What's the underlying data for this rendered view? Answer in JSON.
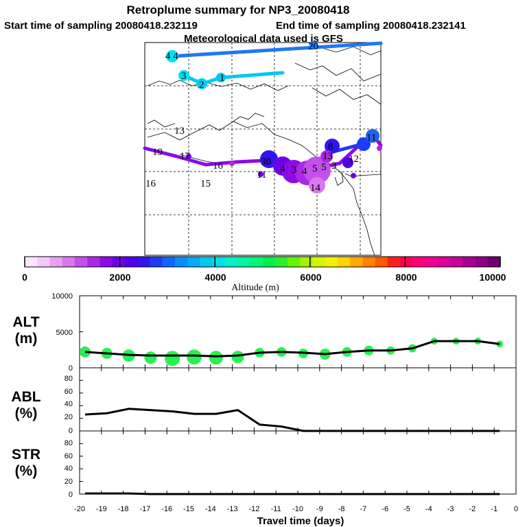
{
  "header": {
    "title": "Retroplume summary for NP3_20080418",
    "start_label": "Start time of sampling 20080418.232119",
    "end_label": "End time of sampling 20080418.232141",
    "met_label": "Meteorological data used is GFS"
  },
  "colorbar": {
    "ticks": [
      "0",
      "2000",
      "4000",
      "6000",
      "8000",
      "10000"
    ],
    "label": "Altitude (m)",
    "range": [
      0,
      10000
    ],
    "colors": [
      "#ffe6ff",
      "#f5c8fa",
      "#e8a0f5",
      "#d878f0",
      "#c450eb",
      "#aa28e6",
      "#8c0ae6",
      "#6e00e6",
      "#5000e6",
      "#3214f0",
      "#1e3cf5",
      "#1464fa",
      "#0a8cfa",
      "#00aaf5",
      "#00c8f0",
      "#00e0e6",
      "#00f0c8",
      "#00f5a0",
      "#00f578",
      "#00f050",
      "#28f028",
      "#64f500",
      "#a0f500",
      "#d2f500",
      "#f5f000",
      "#ffd200",
      "#ffaa00",
      "#ff8200",
      "#ff5a00",
      "#ff1e1e",
      "#ff0050",
      "#ff0078",
      "#f0008c",
      "#dc0096",
      "#c80096",
      "#aa0090",
      "#8c0082",
      "#6e0070"
    ]
  },
  "map": {
    "labels": [
      {
        "text": "4 4",
        "color": "#00e0f0"
      },
      {
        "text": "20",
        "color": "#1e64f0"
      },
      {
        "text": "3",
        "color": "#00e0f0"
      },
      {
        "text": "1",
        "color": "#00e0f0"
      },
      {
        "text": "2",
        "color": "#00e0f0"
      },
      {
        "text": "13",
        "color": "#000000"
      },
      {
        "text": "19",
        "color": "#a000e6"
      },
      {
        "text": "17",
        "color": "#a000e6"
      },
      {
        "text": "16",
        "color": "#a000e6"
      },
      {
        "text": "16",
        "color": "#a000e6"
      },
      {
        "text": "15",
        "color": "#a000e6"
      },
      {
        "text": "11",
        "color": "#6e00e6"
      },
      {
        "text": "30",
        "color": "#5000e6"
      },
      {
        "text": "4",
        "color": "#c450eb"
      },
      {
        "text": "3",
        "color": "#c450eb"
      },
      {
        "text": "4",
        "color": "#c450eb"
      },
      {
        "text": "5",
        "color": "#c450eb"
      },
      {
        "text": "5",
        "color": "#c450eb"
      },
      {
        "text": "3",
        "color": "#c450eb"
      },
      {
        "text": "14",
        "color": "#d878f0"
      },
      {
        "text": "13",
        "color": "#aa28e6"
      },
      {
        "text": "12",
        "color": "#5000e6"
      },
      {
        "text": "8",
        "color": "#3214f0"
      },
      {
        "text": "11",
        "color": "#1e64f0"
      }
    ]
  },
  "chart_data": [
    {
      "type": "line",
      "panel": "ALT",
      "ylabel": "ALT",
      "yunit": "(m)",
      "ylim": [
        0,
        10000
      ],
      "yticks": [
        "10000",
        "5000",
        "0"
      ],
      "x": [
        -20,
        -19,
        -18,
        -17,
        -16,
        -15,
        -14,
        -13,
        -12,
        -11,
        -10,
        -9,
        -8,
        -7,
        -6,
        -5,
        -4,
        -3,
        -2,
        -1
      ],
      "values": [
        2200,
        2000,
        1800,
        1700,
        1700,
        1700,
        1600,
        1700,
        2100,
        2200,
        2100,
        1900,
        2200,
        2400,
        2400,
        2700,
        3700,
        3700,
        3700,
        3300
      ],
      "markers": [
        2200,
        2000,
        1700,
        1400,
        1300,
        1500,
        1400,
        1500,
        2100,
        2200,
        2000,
        1900,
        2200,
        2400,
        2400,
        2700,
        3700,
        3700,
        3700,
        3300
      ]
    },
    {
      "type": "line",
      "panel": "ABL",
      "ylabel": "ABL",
      "yunit": "(%)",
      "ylim": [
        0,
        100
      ],
      "yticks": [
        "80",
        "60",
        "40",
        "20",
        "0"
      ],
      "x": [
        -20,
        -19,
        -18,
        -17,
        -16,
        -15,
        -14,
        -13,
        -12,
        -11,
        -10,
        -9,
        -8,
        -7,
        -6,
        -5,
        -4,
        -3,
        -2,
        -1
      ],
      "values": [
        26,
        28,
        35,
        33,
        31,
        27,
        27,
        33,
        10,
        7,
        0,
        0,
        0,
        0,
        0,
        0,
        0,
        0,
        0,
        0
      ]
    },
    {
      "type": "line",
      "panel": "STR",
      "ylabel": "STR",
      "yunit": "(%)",
      "ylim": [
        0,
        100
      ],
      "yticks": [
        "80",
        "60",
        "40",
        "20",
        "0"
      ],
      "x": [
        -20,
        -19,
        -18,
        -17,
        -16,
        -15,
        -14,
        -13,
        -12,
        -11,
        -10,
        -9,
        -8,
        -7,
        -6,
        -5,
        -4,
        -3,
        -2,
        -1
      ],
      "values": [
        1,
        1,
        1,
        0,
        0,
        0,
        0,
        0,
        0,
        0,
        0,
        0,
        0,
        0,
        0,
        0,
        0,
        0,
        0,
        0
      ]
    }
  ],
  "xaxis": {
    "label": "Travel time (days)",
    "ticks": [
      "-20",
      "-19",
      "-18",
      "-17",
      "-16",
      "-15",
      "-14",
      "-13",
      "-12",
      "-11",
      "-10",
      "-9",
      "-8",
      "-7",
      "-6",
      "-5",
      "-4",
      "-3",
      "-2",
      "-1",
      "0"
    ],
    "range": [
      -20,
      0
    ]
  }
}
